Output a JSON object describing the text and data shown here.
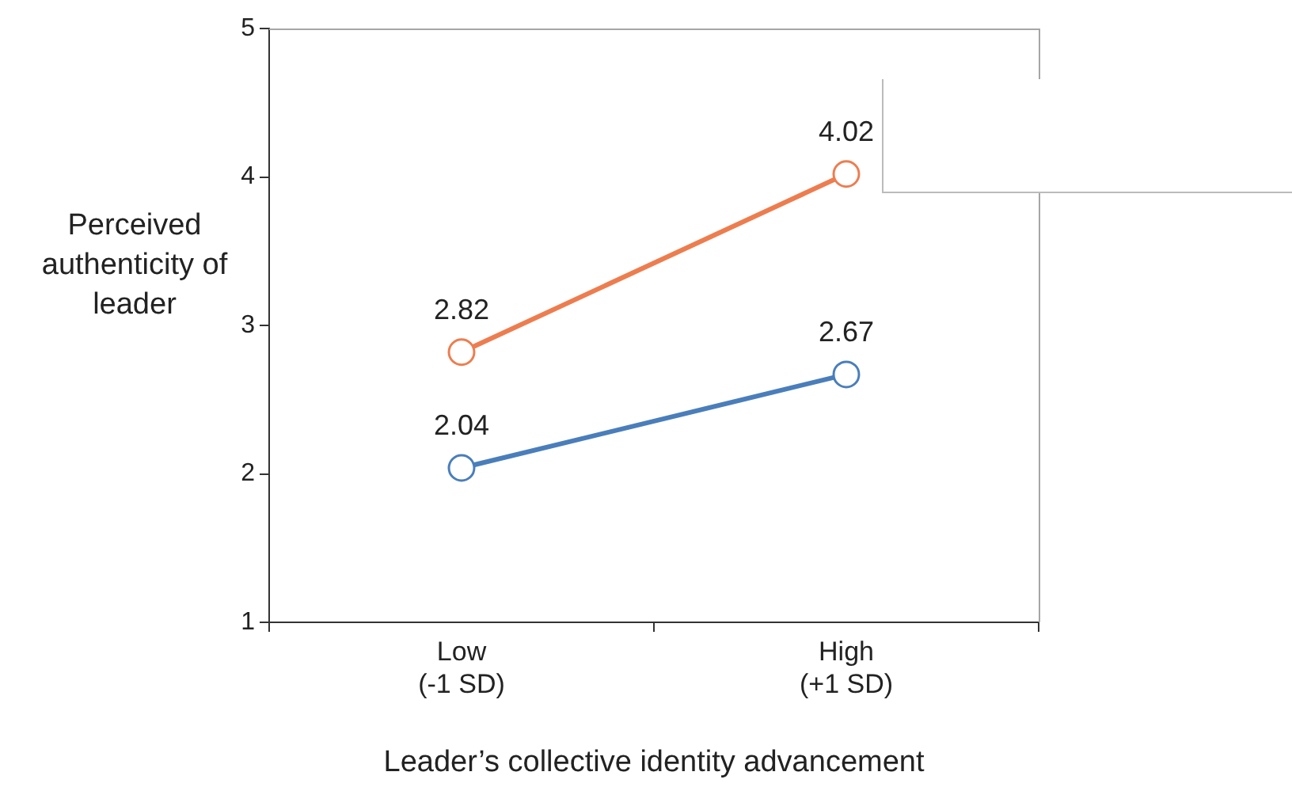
{
  "chart_data": {
    "type": "line",
    "xlabel": "Leader’s collective identity advancement",
    "ylabel": "Perceived authenticity of leader",
    "categories": [
      "Low (-1 SD)",
      "High (+1 SD)"
    ],
    "series": [
      {
        "color": "#ed7d4f",
        "values": [
          2.82,
          4.02
        ]
      },
      {
        "color": "#4a7ebb",
        "values": [
          2.04,
          2.67
        ]
      }
    ],
    "ylim": [
      1,
      5
    ],
    "yticks": [
      1,
      2,
      3,
      4,
      5
    ],
    "grid": false,
    "legend": false,
    "marker": "circle",
    "line_style": "solid",
    "data_labels": true
  }
}
